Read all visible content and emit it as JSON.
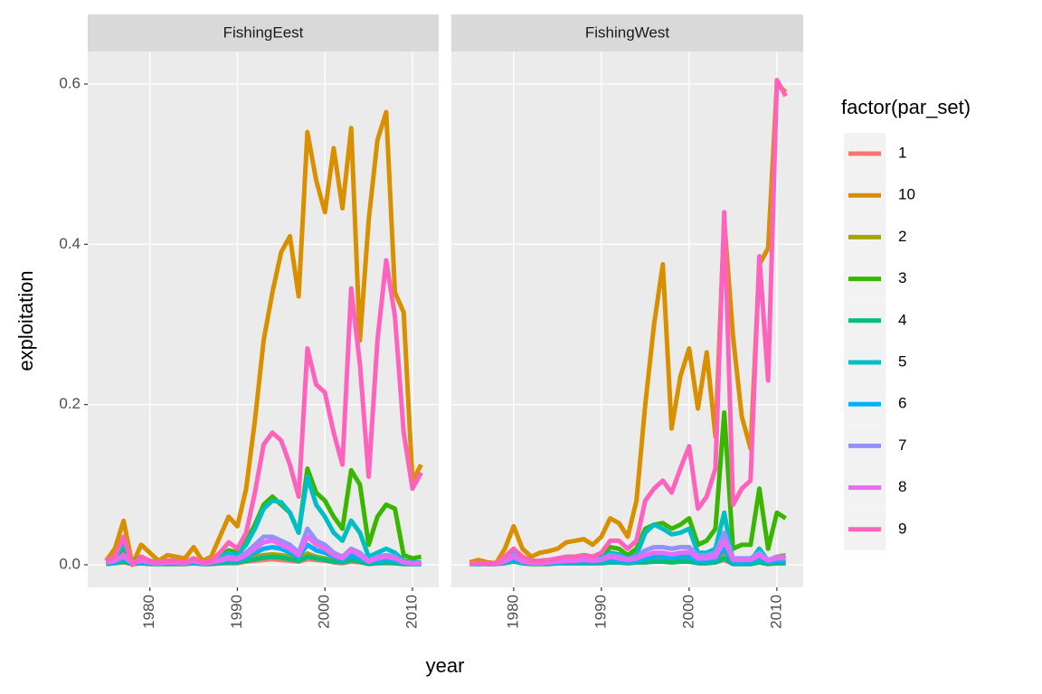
{
  "chart_data": {
    "type": "line",
    "xlabel": "year",
    "ylabel": "exploitation",
    "legend_title": "factor(par_set)",
    "x": [
      1975,
      1976,
      1977,
      1978,
      1979,
      1980,
      1981,
      1982,
      1983,
      1984,
      1985,
      1986,
      1987,
      1988,
      1989,
      1990,
      1991,
      1992,
      1993,
      1994,
      1995,
      1996,
      1997,
      1998,
      1999,
      2000,
      2001,
      2002,
      2003,
      2004,
      2005,
      2006,
      2007,
      2008,
      2009,
      2010,
      2011
    ],
    "xlim": [
      1972.9,
      2013
    ],
    "xticks": [
      1980,
      1990,
      2000,
      2010
    ],
    "ylim": [
      -0.0282,
      0.6406
    ],
    "yticks": [
      {
        "value": 0,
        "label": "0.0"
      },
      0.2,
      0.4,
      0.6
    ],
    "grid": true,
    "facets": [
      {
        "title": "FishingEest",
        "series": [
          {
            "name": "1",
            "color": "#F8766D",
            "values": [
              0.001,
              0.002,
              0.003,
              0.001,
              0.002,
              0.001,
              0.001,
              0.001,
              0.001,
              0.001,
              0.002,
              0.001,
              0.001,
              0.002,
              0.002,
              0.002,
              0.004,
              0.005,
              0.006,
              0.007,
              0.006,
              0.005,
              0.004,
              0.007,
              0.006,
              0.005,
              0.003,
              0.002,
              0.004,
              0.003,
              0.001,
              0.002,
              0.002,
              0.002,
              0.001,
              0.001,
              0.001
            ]
          },
          {
            "name": "10",
            "color": "#D89000",
            "values": [
              0.005,
              0.02,
              0.055,
              0.0,
              0.025,
              0.015,
              0.005,
              0.012,
              0.01,
              0.008,
              0.022,
              0.005,
              0.01,
              0.035,
              0.06,
              0.048,
              0.095,
              0.18,
              0.28,
              0.34,
              0.39,
              0.41,
              0.335,
              0.54,
              0.48,
              0.44,
              0.52,
              0.445,
              0.545,
              0.28,
              0.43,
              0.53,
              0.565,
              0.34,
              0.315,
              0.105,
              0.125
            ]
          },
          {
            "name": "2",
            "color": "#A3A500",
            "values": [
              0.002,
              0.003,
              0.005,
              0.001,
              0.003,
              0.002,
              0.001,
              0.002,
              0.002,
              0.001,
              0.003,
              0.001,
              0.002,
              0.003,
              0.004,
              0.004,
              0.007,
              0.01,
              0.012,
              0.013,
              0.012,
              0.01,
              0.006,
              0.014,
              0.01,
              0.008,
              0.006,
              0.004,
              0.008,
              0.006,
              0.002,
              0.003,
              0.004,
              0.003,
              0.001,
              0.001,
              0.001
            ]
          },
          {
            "name": "3",
            "color": "#39B600",
            "values": [
              0.005,
              0.01,
              0.02,
              0.003,
              0.01,
              0.005,
              0.003,
              0.005,
              0.004,
              0.003,
              0.008,
              0.003,
              0.005,
              0.012,
              0.018,
              0.015,
              0.03,
              0.05,
              0.075,
              0.085,
              0.075,
              0.065,
              0.04,
              0.12,
              0.09,
              0.08,
              0.06,
              0.045,
              0.118,
              0.1,
              0.025,
              0.06,
              0.075,
              0.07,
              0.012,
              0.008,
              0.01
            ]
          },
          {
            "name": "4",
            "color": "#00BF7D",
            "values": [
              0.001,
              0.002,
              0.004,
              0.001,
              0.002,
              0.001,
              0.001,
              0.001,
              0.001,
              0.001,
              0.002,
              0.001,
              0.001,
              0.002,
              0.003,
              0.003,
              0.005,
              0.007,
              0.009,
              0.01,
              0.009,
              0.007,
              0.005,
              0.01,
              0.008,
              0.006,
              0.004,
              0.003,
              0.006,
              0.004,
              0.001,
              0.002,
              0.003,
              0.002,
              0.001,
              0.001,
              0.001
            ]
          },
          {
            "name": "5",
            "color": "#00BFC4",
            "values": [
              0.004,
              0.008,
              0.025,
              0.002,
              0.008,
              0.004,
              0.003,
              0.004,
              0.003,
              0.003,
              0.006,
              0.003,
              0.004,
              0.01,
              0.015,
              0.012,
              0.025,
              0.045,
              0.07,
              0.08,
              0.078,
              0.065,
              0.04,
              0.11,
              0.075,
              0.06,
              0.04,
              0.03,
              0.055,
              0.04,
              0.01,
              0.015,
              0.02,
              0.015,
              0.005,
              0.003,
              0.003
            ]
          },
          {
            "name": "6",
            "color": "#00B0F6",
            "values": [
              0.002,
              0.003,
              0.008,
              0.001,
              0.003,
              0.002,
              0.001,
              0.002,
              0.002,
              0.001,
              0.003,
              0.001,
              0.002,
              0.004,
              0.006,
              0.005,
              0.01,
              0.015,
              0.02,
              0.022,
              0.02,
              0.015,
              0.01,
              0.025,
              0.018,
              0.015,
              0.01,
              0.006,
              0.012,
              0.008,
              0.003,
              0.005,
              0.006,
              0.005,
              0.002,
              0.001,
              0.001
            ]
          },
          {
            "name": "7",
            "color": "#9590FF",
            "values": [
              0.003,
              0.005,
              0.01,
              0.002,
              0.005,
              0.003,
              0.002,
              0.003,
              0.003,
              0.002,
              0.005,
              0.002,
              0.003,
              0.006,
              0.01,
              0.008,
              0.015,
              0.025,
              0.035,
              0.035,
              0.03,
              0.025,
              0.015,
              0.045,
              0.03,
              0.025,
              0.015,
              0.01,
              0.02,
              0.015,
              0.005,
              0.01,
              0.012,
              0.01,
              0.003,
              0.002,
              0.002
            ]
          },
          {
            "name": "8",
            "color": "#E76BF3",
            "values": [
              0.003,
              0.005,
              0.012,
              0.002,
              0.005,
              0.003,
              0.002,
              0.003,
              0.003,
              0.002,
              0.005,
              0.002,
              0.003,
              0.005,
              0.008,
              0.007,
              0.012,
              0.02,
              0.028,
              0.03,
              0.025,
              0.02,
              0.012,
              0.035,
              0.025,
              0.02,
              0.012,
              0.008,
              0.018,
              0.012,
              0.004,
              0.008,
              0.01,
              0.008,
              0.003,
              0.002,
              0.002
            ]
          },
          {
            "name": "9",
            "color": "#FF62BC",
            "values": [
              0.005,
              0.01,
              0.035,
              0.0,
              0.01,
              0.005,
              0.003,
              0.005,
              0.005,
              0.003,
              0.008,
              0.003,
              0.005,
              0.015,
              0.028,
              0.02,
              0.04,
              0.09,
              0.15,
              0.165,
              0.155,
              0.125,
              0.085,
              0.27,
              0.225,
              0.215,
              0.165,
              0.125,
              0.345,
              0.25,
              0.11,
              0.28,
              0.38,
              0.31,
              0.165,
              0.095,
              0.115
            ]
          }
        ]
      },
      {
        "title": "FishingWest",
        "series": [
          {
            "name": "1",
            "color": "#F8766D",
            "values": [
              0.001,
              0.001,
              0.001,
              0.001,
              0.002,
              0.004,
              0.002,
              0.001,
              0.001,
              0.001,
              0.002,
              0.002,
              0.002,
              0.002,
              0.002,
              0.002,
              0.003,
              0.003,
              0.002,
              0.003,
              0.003,
              0.004,
              0.004,
              0.003,
              0.004,
              0.004,
              0.002,
              0.002,
              0.003,
              0.006,
              0.001,
              0.001,
              0.001,
              0.003,
              0.001,
              0.002,
              0.002
            ]
          },
          {
            "name": "10",
            "color": "#D89000",
            "values": [
              0.003,
              0.006,
              0.003,
              0.002,
              0.02,
              0.048,
              0.02,
              0.01,
              0.015,
              0.017,
              0.02,
              0.028,
              0.03,
              0.032,
              0.025,
              0.035,
              0.058,
              0.052,
              0.035,
              0.08,
              0.2,
              0.3,
              0.375,
              0.17,
              0.235,
              0.27,
              0.195,
              0.265,
              0.16,
              0.43,
              0.285,
              0.185,
              0.145,
              0.375,
              0.395,
              0.6,
              0.59
            ]
          },
          {
            "name": "2",
            "color": "#A3A500",
            "values": [
              0.001,
              0.002,
              0.001,
              0.001,
              0.003,
              0.008,
              0.003,
              0.002,
              0.002,
              0.003,
              0.003,
              0.004,
              0.004,
              0.005,
              0.004,
              0.005,
              0.008,
              0.007,
              0.005,
              0.007,
              0.006,
              0.008,
              0.008,
              0.007,
              0.008,
              0.009,
              0.004,
              0.004,
              0.005,
              0.015,
              0.003,
              0.003,
              0.003,
              0.008,
              0.002,
              0.01,
              0.012
            ]
          },
          {
            "name": "3",
            "color": "#39B600",
            "values": [
              0.001,
              0.002,
              0.001,
              0.001,
              0.008,
              0.02,
              0.008,
              0.004,
              0.005,
              0.006,
              0.007,
              0.01,
              0.01,
              0.012,
              0.01,
              0.012,
              0.022,
              0.02,
              0.012,
              0.02,
              0.045,
              0.05,
              0.052,
              0.045,
              0.05,
              0.058,
              0.025,
              0.03,
              0.045,
              0.19,
              0.02,
              0.025,
              0.025,
              0.095,
              0.02,
              0.065,
              0.058
            ]
          },
          {
            "name": "4",
            "color": "#00BF7D",
            "values": [
              0.001,
              0.001,
              0.001,
              0.001,
              0.002,
              0.004,
              0.002,
              0.001,
              0.001,
              0.001,
              0.002,
              0.002,
              0.002,
              0.002,
              0.002,
              0.002,
              0.003,
              0.003,
              0.002,
              0.003,
              0.003,
              0.004,
              0.004,
              0.003,
              0.004,
              0.004,
              0.002,
              0.002,
              0.003,
              0.008,
              0.001,
              0.001,
              0.001,
              0.003,
              0.001,
              0.002,
              0.002
            ]
          },
          {
            "name": "5",
            "color": "#00BFC4",
            "values": [
              0.001,
              0.002,
              0.001,
              0.001,
              0.006,
              0.015,
              0.006,
              0.003,
              0.004,
              0.004,
              0.005,
              0.007,
              0.007,
              0.008,
              0.007,
              0.008,
              0.015,
              0.013,
              0.008,
              0.012,
              0.04,
              0.05,
              0.045,
              0.038,
              0.04,
              0.045,
              0.015,
              0.015,
              0.02,
              0.065,
              0.005,
              0.005,
              0.005,
              0.02,
              0.005,
              0.005,
              0.005
            ]
          },
          {
            "name": "6",
            "color": "#00B0F6",
            "values": [
              0.001,
              0.001,
              0.001,
              0.001,
              0.003,
              0.006,
              0.003,
              0.002,
              0.002,
              0.002,
              0.003,
              0.003,
              0.003,
              0.004,
              0.003,
              0.004,
              0.006,
              0.005,
              0.003,
              0.005,
              0.008,
              0.01,
              0.01,
              0.009,
              0.01,
              0.01,
              0.005,
              0.005,
              0.007,
              0.02,
              0.003,
              0.003,
              0.003,
              0.008,
              0.003,
              0.005,
              0.005
            ]
          },
          {
            "name": "7",
            "color": "#9590FF",
            "values": [
              0.001,
              0.002,
              0.001,
              0.001,
              0.005,
              0.012,
              0.005,
              0.003,
              0.003,
              0.004,
              0.005,
              0.006,
              0.006,
              0.007,
              0.006,
              0.007,
              0.012,
              0.01,
              0.007,
              0.01,
              0.018,
              0.022,
              0.022,
              0.02,
              0.022,
              0.022,
              0.012,
              0.012,
              0.015,
              0.04,
              0.008,
              0.008,
              0.008,
              0.015,
              0.006,
              0.01,
              0.01
            ]
          },
          {
            "name": "8",
            "color": "#E76BF3",
            "values": [
              0.001,
              0.002,
              0.001,
              0.001,
              0.004,
              0.01,
              0.004,
              0.002,
              0.002,
              0.003,
              0.004,
              0.005,
              0.005,
              0.006,
              0.005,
              0.006,
              0.01,
              0.008,
              0.006,
              0.008,
              0.012,
              0.015,
              0.015,
              0.013,
              0.015,
              0.016,
              0.008,
              0.008,
              0.01,
              0.03,
              0.006,
              0.006,
              0.006,
              0.012,
              0.005,
              0.008,
              0.008
            ]
          },
          {
            "name": "9",
            "color": "#FF62BC",
            "values": [
              0.002,
              0.002,
              0.002,
              0.002,
              0.01,
              0.02,
              0.01,
              0.005,
              0.005,
              0.006,
              0.008,
              0.01,
              0.01,
              0.012,
              0.01,
              0.015,
              0.03,
              0.03,
              0.02,
              0.03,
              0.08,
              0.095,
              0.105,
              0.09,
              0.12,
              0.148,
              0.07,
              0.085,
              0.12,
              0.44,
              0.075,
              0.095,
              0.105,
              0.385,
              0.23,
              0.605,
              0.585
            ]
          }
        ]
      }
    ]
  }
}
